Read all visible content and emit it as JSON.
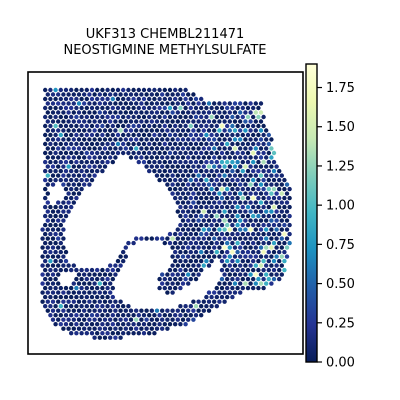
{
  "chart_data": {
    "type": "scatter",
    "title": "UKF313 CHEMBL211471\nNEOSTIGMINE METHYLSULFATE",
    "xlabel": "",
    "ylabel": "",
    "colormap": "YlGnBu",
    "colorbar": {
      "range": [
        0.0,
        1.9
      ],
      "ticks": [
        0.0,
        0.25,
        0.5,
        0.75,
        1.0,
        1.25,
        1.5,
        1.75
      ],
      "tick_labels": [
        "0.00",
        "0.25",
        "0.50",
        "0.75",
        "1.00",
        "1.25",
        "1.50",
        "1.75"
      ]
    },
    "colors": {
      "low": "#081d58",
      "mid": "#225ea8",
      "high": "#ffffd9"
    },
    "grid": false,
    "legend": "none",
    "value_distribution": {
      "background_range": [
        0.0,
        0.35
      ],
      "hotspot_range": [
        0.6,
        1.85
      ],
      "hotspot_region": "right side of tissue"
    }
  }
}
